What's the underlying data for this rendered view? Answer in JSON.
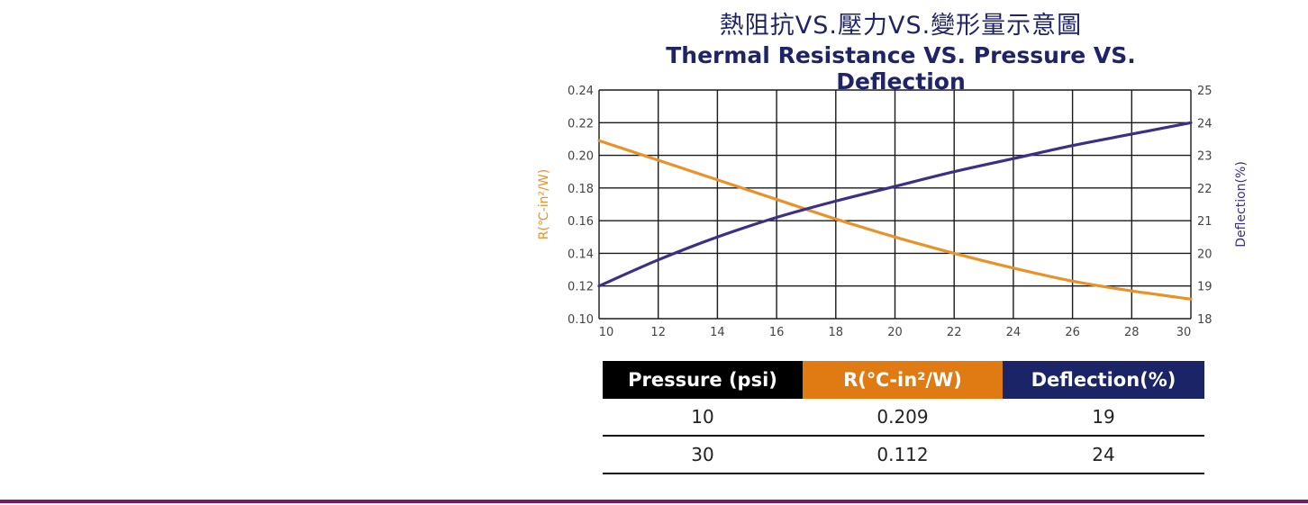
{
  "title_zh": "熱阻抗VS.壓力VS.變形量示意圖",
  "title_en": "Thermal Resistance VS. Pressure VS. Deflection",
  "chart_data": {
    "type": "line",
    "x": [
      10,
      12,
      14,
      16,
      18,
      20,
      22,
      24,
      26,
      28,
      30
    ],
    "xlim": [
      10,
      30
    ],
    "x_ticks": [
      "10",
      "12",
      "14",
      "16",
      "18",
      "20",
      "22",
      "24",
      "26",
      "28",
      "30"
    ],
    "ylabel_left": "R(℃-in²/W)",
    "ylim_left": [
      0.1,
      0.24
    ],
    "y_ticks_left": [
      "0.10",
      "0.12",
      "0.14",
      "0.16",
      "0.18",
      "0.20",
      "0.22",
      "0.24"
    ],
    "ylabel_right": "Deflection(%)",
    "ylim_right": [
      18,
      25
    ],
    "y_ticks_right": [
      "18",
      "19",
      "20",
      "21",
      "22",
      "23",
      "24",
      "25"
    ],
    "grid": true,
    "series": [
      {
        "axis": "left",
        "color": "#e8922a",
        "values": [
          0.209,
          0.197,
          0.185,
          0.173,
          0.161,
          0.15,
          0.14,
          0.131,
          0.123,
          0.117,
          0.112
        ]
      },
      {
        "axis": "right",
        "color": "#3d2f86",
        "values": [
          19.0,
          19.8,
          20.5,
          21.1,
          21.6,
          22.05,
          22.5,
          22.9,
          23.3,
          23.65,
          24.0
        ]
      }
    ]
  },
  "table": {
    "headers": [
      {
        "label": "Pressure (psi)",
        "color": "#000000"
      },
      {
        "label": "R(℃-in²/W)",
        "color": "#e07a12"
      },
      {
        "label": "Deflection(%)",
        "color": "#1b2466"
      }
    ],
    "rows": [
      [
        "10",
        "0.209",
        "19"
      ],
      [
        "30",
        "0.112",
        "24"
      ]
    ]
  },
  "colors": {
    "bottom_rule": "#7a1a6e",
    "title": "#1f2466"
  }
}
